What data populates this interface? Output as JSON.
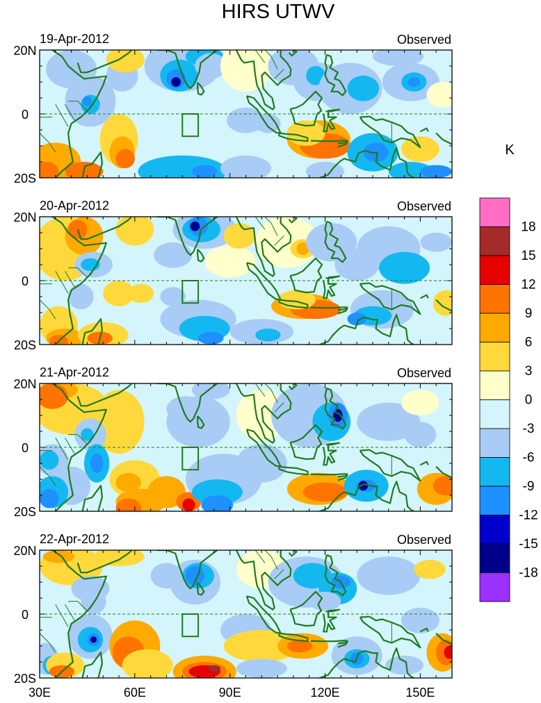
{
  "figure": {
    "title": "HIRS UTWV",
    "unit": "K"
  },
  "panels": [
    {
      "date": "19-Apr-2012",
      "label": "Observed"
    },
    {
      "date": "20-Apr-2012",
      "label": "Observed"
    },
    {
      "date": "21-Apr-2012",
      "label": "Observed"
    },
    {
      "date": "22-Apr-2012",
      "label": "Observed"
    }
  ],
  "axes": {
    "lat_labels": [
      "20N",
      "0",
      "20S"
    ],
    "lon_labels": [
      "30E",
      "60E",
      "90E",
      "120E",
      "150E"
    ],
    "lon_range": [
      30,
      160
    ],
    "lat_range": [
      -20,
      20
    ]
  },
  "colorbar": {
    "labels": [
      "18",
      "15",
      "12",
      "9",
      "6",
      "3",
      "0",
      "-3",
      "-6",
      "-9",
      "-12",
      "-15",
      "-18"
    ],
    "colors": [
      "#ff6ec4",
      "#a52a2a",
      "#e60000",
      "#ff7300",
      "#ffaa00",
      "#ffd93b",
      "#ffffcc",
      "#d4f5fb",
      "#a8ccf5",
      "#14b8f0",
      "#1e90ff",
      "#0000cd",
      "#00008b",
      "#9b30ff"
    ]
  },
  "map": {
    "box_region": {
      "lon": [
        75,
        80
      ],
      "lat": [
        -7,
        0
      ]
    },
    "coast_color": "#1f7a1f"
  }
}
